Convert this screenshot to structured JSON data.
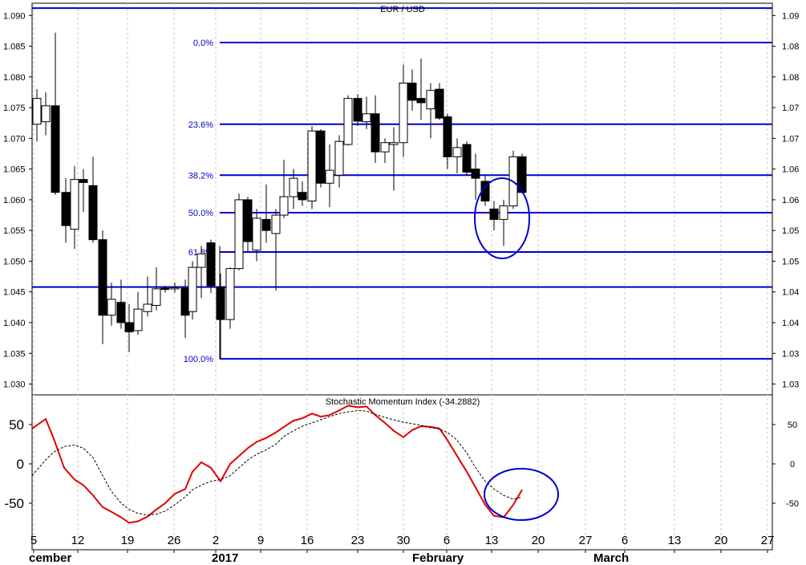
{
  "chart_data": [
    {
      "type": "candlestick",
      "title": "EUR / USD",
      "ylim": [
        1.0285,
        1.092
      ],
      "left_ticks": [
        "1.090",
        "1.085",
        "1.080",
        "1.075",
        "1.070",
        "1.065",
        "1.060",
        "1.055",
        "1.050",
        "1.045",
        "1.040",
        "1.035",
        "1.030"
      ],
      "left_tick_values": [
        1.09,
        1.085,
        1.08,
        1.075,
        1.07,
        1.065,
        1.06,
        1.055,
        1.05,
        1.045,
        1.04,
        1.035,
        1.03
      ],
      "right_ticks": [
        "1.09",
        "1.08",
        "1.08",
        "1.07",
        "1.07",
        "1.06",
        "1.06",
        "1.05",
        "1.05",
        "1.04",
        "1.04",
        "1.03",
        "1.03"
      ],
      "grid": "vertical dashed at week starts",
      "x_ticks": [
        "5",
        "12",
        "19",
        "26",
        "2",
        "9",
        "16",
        "23",
        "30",
        "6",
        "13",
        "20",
        "27",
        "6",
        "13",
        "20",
        "27"
      ],
      "x_tick_positions": [
        42,
        97,
        159,
        217,
        269,
        325,
        383,
        446,
        503,
        557,
        613,
        671,
        730,
        779,
        841,
        899,
        957
      ],
      "month_labels": [
        {
          "label": "cember",
          "x": 36
        },
        {
          "label": "2017",
          "x": 264
        },
        {
          "label": "February",
          "x": 514
        },
        {
          "label": "March",
          "x": 740
        }
      ],
      "fib_levels": [
        {
          "label": "0.0%",
          "value": 1.0856
        },
        {
          "label": "23.6%",
          "value": 1.0723
        },
        {
          "label": "38.2%",
          "value": 1.064
        },
        {
          "label": "50.0%",
          "value": 1.0579
        },
        {
          "label": "61.8%",
          "value": 1.0515
        },
        {
          "label": "100.0%",
          "value": 1.0341
        }
      ],
      "support_levels": [
        1.0912,
        1.0458
      ],
      "candles": [
        {
          "x": 46,
          "o": 1.0723,
          "h": 1.078,
          "l": 1.0695,
          "c": 1.0765
        },
        {
          "x": 57,
          "o": 1.0727,
          "h": 1.0775,
          "l": 1.0705,
          "c": 1.0753
        },
        {
          "x": 69,
          "o": 1.0753,
          "h": 1.0872,
          "l": 1.0608,
          "c": 1.0612
        },
        {
          "x": 82,
          "o": 1.0612,
          "h": 1.0635,
          "l": 1.053,
          "c": 1.0558
        },
        {
          "x": 93,
          "o": 1.0552,
          "h": 1.0655,
          "l": 1.052,
          "c": 1.0633
        },
        {
          "x": 104,
          "o": 1.0633,
          "h": 1.065,
          "l": 1.058,
          "c": 1.0628
        },
        {
          "x": 116,
          "o": 1.0623,
          "h": 1.067,
          "l": 1.053,
          "c": 1.0535
        },
        {
          "x": 128,
          "o": 1.0535,
          "h": 1.055,
          "l": 1.0365,
          "c": 1.0412
        },
        {
          "x": 139,
          "o": 1.0412,
          "h": 1.0465,
          "l": 1.0395,
          "c": 1.0438
        },
        {
          "x": 151,
          "o": 1.0433,
          "h": 1.047,
          "l": 1.039,
          "c": 1.04
        },
        {
          "x": 161,
          "o": 1.04,
          "h": 1.043,
          "l": 1.0352,
          "c": 1.0385
        },
        {
          "x": 172,
          "o": 1.0387,
          "h": 1.045,
          "l": 1.038,
          "c": 1.0422
        },
        {
          "x": 184,
          "o": 1.0418,
          "h": 1.0475,
          "l": 1.041,
          "c": 1.043
        },
        {
          "x": 195,
          "o": 1.0428,
          "h": 1.049,
          "l": 1.042,
          "c": 1.0455
        },
        {
          "x": 206,
          "o": 1.0456,
          "h": 1.046,
          "l": 1.0449,
          "c": 1.0454
        },
        {
          "x": 218,
          "o": 1.0455,
          "h": 1.0465,
          "l": 1.0449,
          "c": 1.0457
        },
        {
          "x": 231,
          "o": 1.0456,
          "h": 1.047,
          "l": 1.0375,
          "c": 1.0412
        },
        {
          "x": 240,
          "o": 1.0418,
          "h": 1.05,
          "l": 1.0405,
          "c": 1.049
        },
        {
          "x": 251,
          "o": 1.049,
          "h": 1.0525,
          "l": 1.044,
          "c": 1.0512
        },
        {
          "x": 263,
          "o": 1.053,
          "h": 1.0535,
          "l": 1.0448,
          "c": 1.046
        },
        {
          "x": 275,
          "o": 1.0458,
          "h": 1.048,
          "l": 1.0341,
          "c": 1.0405
        },
        {
          "x": 287,
          "o": 1.0405,
          "h": 1.049,
          "l": 1.039,
          "c": 1.0488
        },
        {
          "x": 298,
          "o": 1.0488,
          "h": 1.061,
          "l": 1.0485,
          "c": 1.06
        },
        {
          "x": 309,
          "o": 1.06,
          "h": 1.0605,
          "l": 1.0515,
          "c": 1.0532
        },
        {
          "x": 320,
          "o": 1.0518,
          "h": 1.0585,
          "l": 1.05,
          "c": 1.057
        },
        {
          "x": 332,
          "o": 1.0568,
          "h": 1.0625,
          "l": 1.053,
          "c": 1.055
        },
        {
          "x": 344,
          "o": 1.0545,
          "h": 1.0585,
          "l": 1.0452,
          "c": 1.0575
        },
        {
          "x": 354,
          "o": 1.0575,
          "h": 1.0665,
          "l": 1.057,
          "c": 1.0605
        },
        {
          "x": 366,
          "o": 1.0605,
          "h": 1.065,
          "l": 1.0585,
          "c": 1.0635
        },
        {
          "x": 377,
          "o": 1.0612,
          "h": 1.063,
          "l": 1.059,
          "c": 1.06
        },
        {
          "x": 389,
          "o": 1.0598,
          "h": 1.072,
          "l": 1.0585,
          "c": 1.0712
        },
        {
          "x": 400,
          "o": 1.0712,
          "h": 1.0715,
          "l": 1.062,
          "c": 1.0627
        },
        {
          "x": 411,
          "o": 1.0627,
          "h": 1.069,
          "l": 1.0588,
          "c": 1.0648
        },
        {
          "x": 423,
          "o": 1.064,
          "h": 1.0705,
          "l": 1.062,
          "c": 1.0695
        },
        {
          "x": 434,
          "o": 1.069,
          "h": 1.077,
          "l": 1.0688,
          "c": 1.0765
        },
        {
          "x": 446,
          "o": 1.0765,
          "h": 1.0772,
          "l": 1.072,
          "c": 1.0728
        },
        {
          "x": 457,
          "o": 1.0727,
          "h": 1.0768,
          "l": 1.0715,
          "c": 1.074
        },
        {
          "x": 468,
          "o": 1.074,
          "h": 1.077,
          "l": 1.066,
          "c": 1.0678
        },
        {
          "x": 480,
          "o": 1.0678,
          "h": 1.07,
          "l": 1.066,
          "c": 1.0693
        },
        {
          "x": 491,
          "o": 1.069,
          "h": 1.0718,
          "l": 1.0615,
          "c": 1.0693
        },
        {
          "x": 503,
          "o": 1.0693,
          "h": 1.082,
          "l": 1.067,
          "c": 1.079
        },
        {
          "x": 514,
          "o": 1.079,
          "h": 1.0812,
          "l": 1.0745,
          "c": 1.0762
        },
        {
          "x": 525,
          "o": 1.0765,
          "h": 1.083,
          "l": 1.073,
          "c": 1.0758
        },
        {
          "x": 537,
          "o": 1.0748,
          "h": 1.079,
          "l": 1.07,
          "c": 1.0778
        },
        {
          "x": 548,
          "o": 1.078,
          "h": 1.079,
          "l": 1.073,
          "c": 1.0733
        },
        {
          "x": 558,
          "o": 1.0735,
          "h": 1.074,
          "l": 1.065,
          "c": 1.067
        },
        {
          "x": 570,
          "o": 1.067,
          "h": 1.07,
          "l": 1.0643,
          "c": 1.0685
        },
        {
          "x": 582,
          "o": 1.069,
          "h": 1.0695,
          "l": 1.064,
          "c": 1.0645
        },
        {
          "x": 593,
          "o": 1.065,
          "h": 1.0675,
          "l": 1.06,
          "c": 1.0635
        },
        {
          "x": 605,
          "o": 1.063,
          "h": 1.064,
          "l": 1.059,
          "c": 1.0598
        },
        {
          "x": 616,
          "o": 1.0585,
          "h": 1.0598,
          "l": 1.055,
          "c": 1.0568
        },
        {
          "x": 628,
          "o": 1.0568,
          "h": 1.06,
          "l": 1.0525,
          "c": 1.059
        },
        {
          "x": 640,
          "o": 1.059,
          "h": 1.068,
          "l": 1.0585,
          "c": 1.067
        },
        {
          "x": 651,
          "o": 1.067,
          "h": 1.0675,
          "l": 1.061,
          "c": 1.0612
        }
      ],
      "annotation": {
        "type": "ellipse",
        "color": "#0000cc"
      }
    },
    {
      "type": "line",
      "title": "Stochastic Momentum Index (-34.2882)",
      "ylim": [
        -90,
        90
      ],
      "left_ticks": [
        "50",
        "0",
        "-50"
      ],
      "right_ticks": [
        "50",
        "0",
        "-50"
      ],
      "tick_values": [
        50,
        0,
        -50
      ],
      "series": [
        {
          "color": "#e00000",
          "style": "solid",
          "x": [
            40,
            57,
            67,
            80,
            93,
            104,
            116,
            128,
            139,
            151,
            161,
            172,
            184,
            195,
            206,
            218,
            231,
            240,
            251,
            263,
            275,
            287,
            298,
            309,
            320,
            332,
            344,
            354,
            366,
            377,
            389,
            400,
            411,
            423,
            434,
            446,
            457,
            468,
            480,
            491,
            503,
            514,
            525,
            537,
            548,
            558,
            570,
            582,
            593,
            605,
            616,
            628,
            640,
            651
          ],
          "y": [
            45,
            57,
            32,
            -5,
            -20,
            -27,
            -40,
            -55,
            -61,
            -68,
            -75,
            -73,
            -67,
            -58,
            -50,
            -38,
            -32,
            -10,
            2,
            -5,
            -22,
            0,
            10,
            20,
            28,
            33,
            40,
            47,
            55,
            58,
            64,
            60,
            62,
            68,
            74,
            72,
            73,
            62,
            52,
            42,
            34,
            43,
            48,
            47,
            45,
            30,
            10,
            -10,
            -30,
            -52,
            -66,
            -68,
            -52,
            -33
          ]
        },
        {
          "color": "#000000",
          "style": "dashed",
          "x": [
            40,
            57,
            67,
            80,
            93,
            104,
            116,
            128,
            139,
            151,
            161,
            172,
            184,
            195,
            206,
            218,
            231,
            240,
            251,
            263,
            275,
            287,
            298,
            309,
            320,
            332,
            344,
            354,
            366,
            377,
            389,
            400,
            411,
            423,
            434,
            446,
            457,
            468,
            480,
            491,
            503,
            514,
            525,
            537,
            548,
            558,
            570,
            582,
            593,
            605,
            616,
            628,
            640,
            651
          ],
          "y": [
            -15,
            5,
            15,
            22,
            24,
            20,
            8,
            -15,
            -35,
            -50,
            -58,
            -63,
            -65,
            -64,
            -60,
            -52,
            -42,
            -33,
            -27,
            -22,
            -20,
            -15,
            -5,
            5,
            12,
            18,
            25,
            35,
            42,
            48,
            52,
            56,
            60,
            64,
            66,
            68,
            67,
            63,
            59,
            56,
            53,
            51,
            49,
            46,
            44,
            40,
            30,
            14,
            -5,
            -22,
            -32,
            -40,
            -45,
            -42
          ]
        }
      ],
      "annotation": {
        "type": "ellipse",
        "color": "#0000cc"
      }
    }
  ]
}
